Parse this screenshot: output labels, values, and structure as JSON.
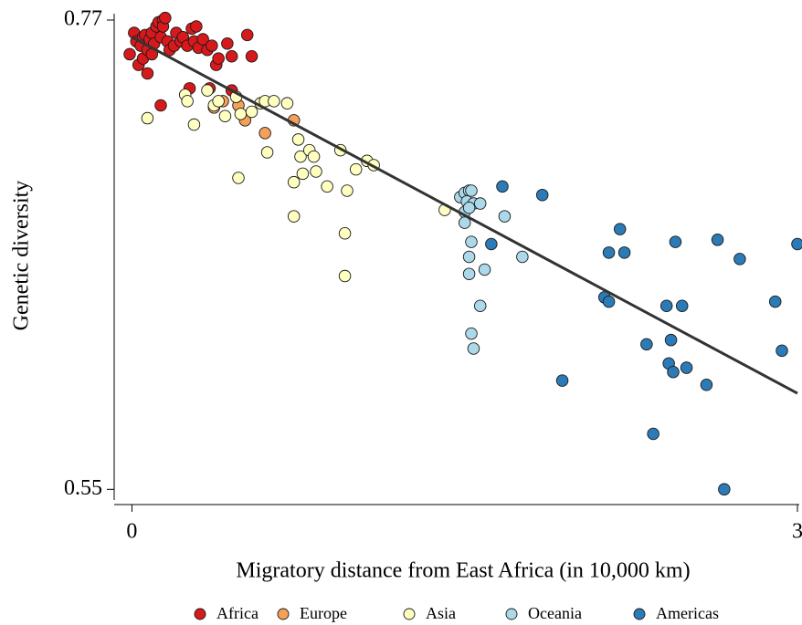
{
  "chart_data": {
    "type": "scatter",
    "x_label": "Migratory distance from East Africa (in 10,000 km)",
    "y_label": "Genetic diversity",
    "xlim": [
      -0.08,
      3.0
    ],
    "ylim": [
      0.545,
      0.773
    ],
    "xticks": [
      0,
      3
    ],
    "yticks": [
      0.55,
      0.77
    ],
    "legend": "bottom",
    "series": [
      {
        "name": "Africa",
        "color": "#d7191c",
        "x": [
          -0.01,
          0.01,
          0.02,
          0.03,
          0.04,
          0.05,
          0.05,
          0.06,
          0.07,
          0.07,
          0.08,
          0.09,
          0.09,
          0.1,
          0.11,
          0.12,
          0.13,
          0.14,
          0.14,
          0.15,
          0.16,
          0.17,
          0.19,
          0.2,
          0.22,
          0.23,
          0.25,
          0.27,
          0.28,
          0.29,
          0.3,
          0.32,
          0.34,
          0.36,
          0.38,
          0.39,
          0.43,
          0.45,
          0.52,
          0.54,
          0.13,
          0.26,
          0.35,
          0.45
        ],
        "values": [
          0.754,
          0.764,
          0.76,
          0.749,
          0.758,
          0.762,
          0.752,
          0.763,
          0.756,
          0.745,
          0.761,
          0.764,
          0.754,
          0.759,
          0.767,
          0.769,
          0.762,
          0.77,
          0.767,
          0.771,
          0.76,
          0.756,
          0.758,
          0.764,
          0.76,
          0.762,
          0.758,
          0.766,
          0.76,
          0.767,
          0.757,
          0.761,
          0.756,
          0.758,
          0.749,
          0.752,
          0.759,
          0.753,
          0.763,
          0.753,
          0.73,
          0.738,
          0.738,
          0.737
        ]
      },
      {
        "name": "Europe",
        "color": "#f4a05a",
        "x": [
          0.37,
          0.41,
          0.48,
          0.51,
          0.6,
          0.73
        ],
        "values": [
          0.729,
          0.732,
          0.73,
          0.723,
          0.717,
          0.723
        ]
      },
      {
        "name": "Asia",
        "color": "#ffffbf",
        "x": [
          0.07,
          0.24,
          0.25,
          0.28,
          0.34,
          0.37,
          0.39,
          0.42,
          0.47,
          0.49,
          0.54,
          0.58,
          0.6,
          0.64,
          0.7,
          0.61,
          0.48,
          0.75,
          0.76,
          0.8,
          0.82,
          0.73,
          0.77,
          0.83,
          0.88,
          0.73,
          0.94,
          0.97,
          1.01,
          1.06,
          1.09,
          0.96,
          0.96,
          1.41
        ],
        "values": [
          0.724,
          0.735,
          0.732,
          0.721,
          0.737,
          0.73,
          0.732,
          0.725,
          0.734,
          0.726,
          0.727,
          0.731,
          0.732,
          0.732,
          0.731,
          0.708,
          0.696,
          0.714,
          0.706,
          0.709,
          0.706,
          0.694,
          0.698,
          0.699,
          0.692,
          0.678,
          0.709,
          0.69,
          0.7,
          0.704,
          0.702,
          0.67,
          0.65,
          0.681
        ]
      },
      {
        "name": "Oceania",
        "color": "#abd9e9",
        "x": [
          1.48,
          1.5,
          1.52,
          1.53,
          1.51,
          1.54,
          1.5,
          1.5,
          1.52,
          1.57,
          1.53,
          1.52,
          1.52,
          1.59,
          1.57,
          1.53,
          1.54,
          1.68,
          1.76
        ],
        "values": [
          0.687,
          0.689,
          0.69,
          0.69,
          0.685,
          0.684,
          0.68,
          0.675,
          0.682,
          0.684,
          0.666,
          0.659,
          0.651,
          0.653,
          0.636,
          0.623,
          0.616,
          0.678,
          0.659
        ]
      },
      {
        "name": "Americas",
        "color": "#2c7bb6",
        "x": [
          1.67,
          1.85,
          1.62,
          1.94,
          2.15,
          2.2,
          2.22,
          2.13,
          2.15,
          2.32,
          2.35,
          2.41,
          2.43,
          2.42,
          2.44,
          2.48,
          2.5,
          2.45,
          2.59,
          2.64,
          2.74,
          2.67,
          2.9,
          2.93,
          3.0
        ],
        "values": [
          0.692,
          0.688,
          0.665,
          0.601,
          0.661,
          0.672,
          0.661,
          0.64,
          0.638,
          0.618,
          0.576,
          0.636,
          0.62,
          0.609,
          0.605,
          0.636,
          0.607,
          0.666,
          0.599,
          0.667,
          0.658,
          0.55,
          0.638,
          0.615,
          0.665
        ]
      }
    ],
    "fit_line": {
      "x": [
        0,
        3
      ],
      "values": [
        0.762,
        0.595
      ],
      "color": "#333333"
    }
  }
}
